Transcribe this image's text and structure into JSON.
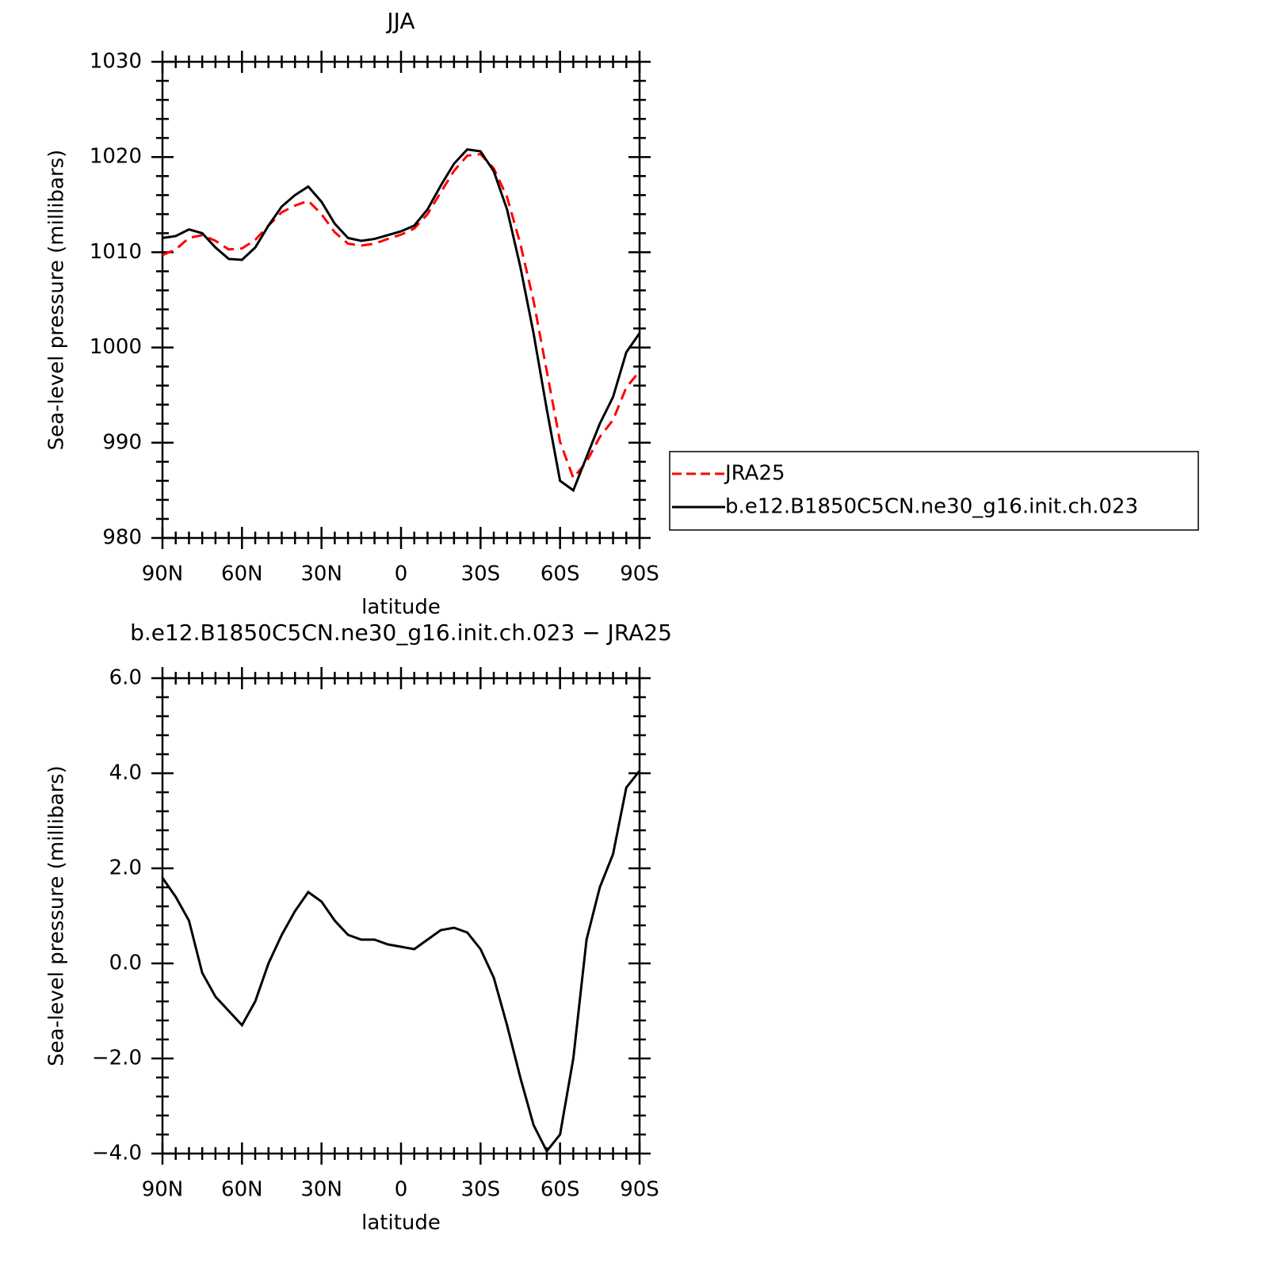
{
  "chart_data": [
    {
      "type": "line",
      "title": "JJA",
      "x_label": "latitude",
      "y_label": "Sea-level pressure (millibars)",
      "x": [
        90,
        85,
        80,
        75,
        70,
        65,
        60,
        55,
        50,
        45,
        40,
        35,
        30,
        25,
        20,
        15,
        10,
        5,
        0,
        -5,
        -10,
        -15,
        -20,
        -25,
        -30,
        -35,
        -40,
        -45,
        -50,
        -55,
        -60,
        -65,
        -70,
        -75,
        -80,
        -85,
        -90
      ],
      "series": [
        {
          "name": "JRA25",
          "color": "#ff0000",
          "line_style": "dashed",
          "values": [
            1009.7,
            1010.3,
            1011.5,
            1011.8,
            1011.2,
            1010.3,
            1010.4,
            1011.3,
            1012.8,
            1014.2,
            1014.9,
            1015.4,
            1014.0,
            1012.1,
            1010.9,
            1010.7,
            1010.9,
            1011.4,
            1011.85,
            1012.5,
            1014.0,
            1016.3,
            1018.55,
            1020.15,
            1020.3,
            1018.8,
            1015.8,
            1010.9,
            1004.9,
            997.5,
            990.1,
            986.3,
            988.0,
            990.6,
            992.4,
            995.8,
            997.5
          ]
        },
        {
          "name": "b.e12.B1850C5CN.ne30_g16.init.ch.023",
          "color": "#000000",
          "line_style": "solid",
          "values": [
            1011.5,
            1011.7,
            1012.4,
            1012.0,
            1010.5,
            1009.3,
            1009.2,
            1010.5,
            1012.8,
            1014.8,
            1016.0,
            1016.9,
            1015.3,
            1013.0,
            1011.5,
            1011.2,
            1011.4,
            1011.8,
            1012.2,
            1012.8,
            1014.5,
            1017.0,
            1019.3,
            1020.8,
            1020.6,
            1018.5,
            1014.5,
            1008.5,
            1001.5,
            993.5,
            986.0,
            985.0,
            988.5,
            992.0,
            994.8,
            999.5,
            1001.5
          ]
        }
      ],
      "xlim": [
        90,
        -90
      ],
      "xticks": [
        {
          "value": 90,
          "label": "90N"
        },
        {
          "value": 60,
          "label": "60N"
        },
        {
          "value": 30,
          "label": "30N"
        },
        0,
        {
          "value": -30,
          "label": "30S"
        },
        {
          "value": -60,
          "label": "60S"
        },
        {
          "value": -90,
          "label": "90S"
        }
      ],
      "ylim": [
        980,
        1030
      ],
      "yticks": [
        980,
        990,
        1000,
        1010,
        1020,
        1030
      ],
      "legend": "right"
    },
    {
      "type": "line",
      "title": "b.e12.B1850C5CN.ne30_g16.init.ch.023 − JRA25",
      "x_label": "latitude",
      "y_label": "Sea-level pressure (millibars)",
      "x": [
        90,
        85,
        80,
        75,
        70,
        65,
        60,
        55,
        50,
        45,
        40,
        35,
        30,
        25,
        20,
        15,
        10,
        5,
        0,
        -5,
        -10,
        -15,
        -20,
        -25,
        -30,
        -35,
        -40,
        -45,
        -50,
        -55,
        -60,
        -65,
        -70,
        -75,
        -80,
        -85,
        -90
      ],
      "values": [
        1.8,
        1.4,
        0.9,
        -0.2,
        -0.7,
        -1.0,
        -1.3,
        -0.8,
        0.0,
        0.6,
        1.1,
        1.5,
        1.3,
        0.9,
        0.6,
        0.5,
        0.5,
        0.4,
        0.35,
        0.3,
        0.5,
        0.7,
        0.75,
        0.65,
        0.3,
        -0.3,
        -1.3,
        -2.4,
        -3.4,
        -3.95,
        -3.6,
        -2.0,
        0.5,
        1.6,
        2.3,
        3.7,
        4.05
      ],
      "color": "#000000",
      "xlim": [
        90,
        -90
      ],
      "xticks": [
        {
          "value": 90,
          "label": "90N"
        },
        {
          "value": 60,
          "label": "60N"
        },
        {
          "value": 30,
          "label": "30N"
        },
        0,
        {
          "value": -30,
          "label": "30S"
        },
        {
          "value": -60,
          "label": "60S"
        },
        {
          "value": -90,
          "label": "90S"
        }
      ],
      "ylim": [
        -4,
        6
      ],
      "yticks": [
        {
          "value": -4,
          "label": "−4.0"
        },
        {
          "value": -2,
          "label": "−2.0"
        },
        {
          "value": 0,
          "label": "0.0"
        },
        {
          "value": 2,
          "label": "2.0"
        },
        {
          "value": 4,
          "label": "4.0"
        },
        {
          "value": 6,
          "label": "6.0"
        }
      ]
    }
  ]
}
